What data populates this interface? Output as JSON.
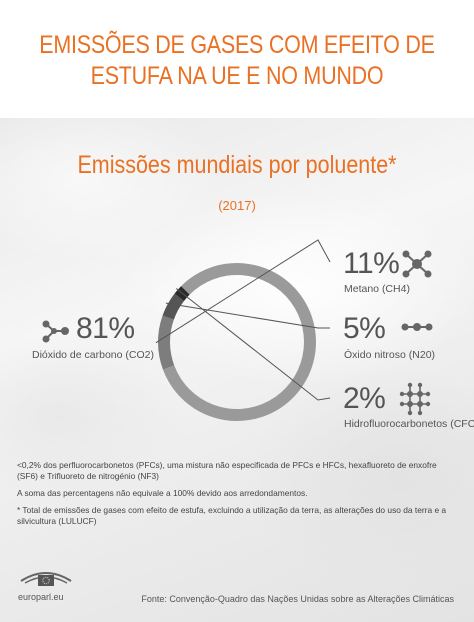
{
  "header": {
    "title": "EMISSÕES DE GASES COM EFEITO DE ESTUFA NA UE E NO MUNDO"
  },
  "chart_data": {
    "type": "pie",
    "title": "Emissões mundiais por poluente*",
    "subtitle": "(2017)",
    "slices": [
      {
        "label": "Dióxido de carbono (CO2)",
        "percent_label": "81%",
        "value": 81,
        "color": "#9a9a9a",
        "icon": "molecule-icon"
      },
      {
        "label": "Metano (CH4)",
        "percent_label": "11%",
        "value": 11,
        "color": "#7d7d7d",
        "icon": "network-icon"
      },
      {
        "label": "Óxido nitroso (N20)",
        "percent_label": "5%",
        "value": 5,
        "color": "#555555",
        "icon": "dots-chain-icon"
      },
      {
        "label": "Hidrofluorocarbonetos (CFCs)",
        "percent_label": "2%",
        "value": 2,
        "color": "#2b2b2b",
        "icon": "lattice-icon"
      }
    ]
  },
  "notes": [
    "<0,2% dos perfluorocarbonetos (PFCs), uma mistura não especificada de PFCs e HFCs, hexafluoreto de enxofre (SF6) e Trifluoreto de nitrogénio (NF3)",
    "A soma das percentagens não equivale a 100% devido aos arredondamentos.",
    "* Total de emissões de gases com efeito de estufa, excluindo a utilização da terra, as alterações do uso da terra e a silvicultura (LULUCF)"
  ],
  "footer": {
    "logo_text": "europarl.eu",
    "source": "Fonte: Convenção-Quadro das Nações Unidas sobre as Alterações Climáticas"
  }
}
